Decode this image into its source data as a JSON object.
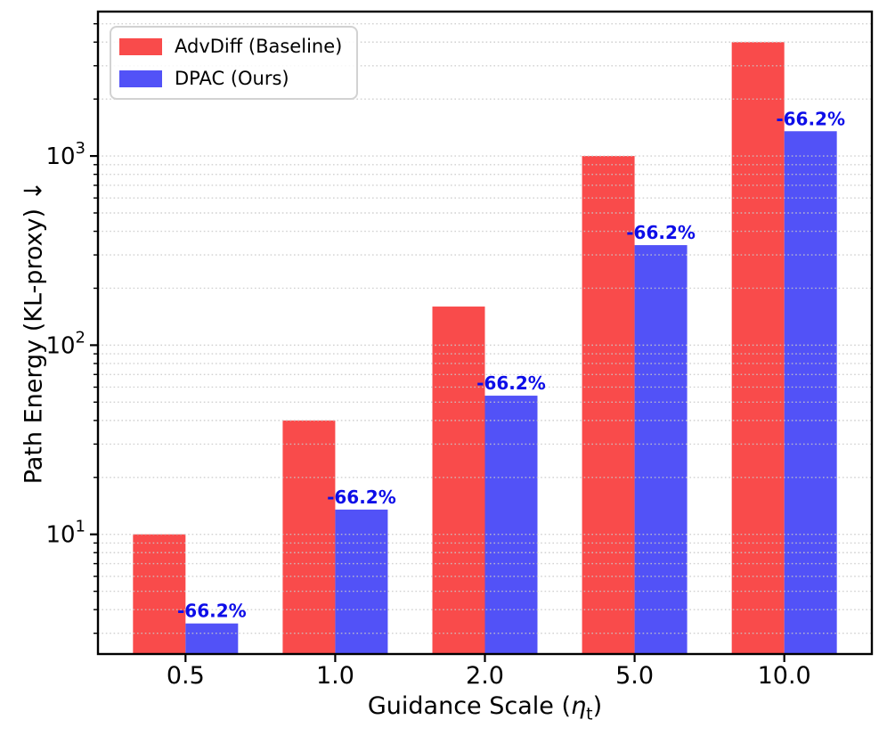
{
  "figure": {
    "background": "#ffffff"
  },
  "chart_data": {
    "type": "bar",
    "categories": [
      "0.5",
      "1.0",
      "2.0",
      "5.0",
      "10.0"
    ],
    "series": [
      {
        "name": "AdvDiff (Baseline)",
        "color": "#f94b4b",
        "values": [
          10,
          40,
          160,
          1000,
          4000
        ]
      },
      {
        "name": "DPAC (Ours)",
        "color": "#5252f7",
        "values": [
          3.38,
          13.52,
          54.08,
          338,
          1352
        ]
      }
    ],
    "annotations": {
      "series_index": 1,
      "labels": [
        "-66.2%",
        "-66.2%",
        "-66.2%",
        "-66.2%",
        "-66.2%"
      ],
      "color": "#0d0de8"
    },
    "title": "",
    "xlabel": {
      "text": "Guidance Scale (ηt)",
      "prefix": "Guidance Scale (",
      "symbol": "η",
      "subscript": "t",
      "suffix": ")"
    },
    "ylabel": "Path Energy (KL-proxy)  ↓",
    "yscale": "log",
    "ylim": [
      2.33,
      5800
    ],
    "yticks": [
      {
        "base": "10",
        "exponent": "1",
        "value": 10
      },
      {
        "base": "10",
        "exponent": "2",
        "value": 100
      },
      {
        "base": "10",
        "exponent": "3",
        "value": 1000
      }
    ],
    "grid": {
      "which": "both",
      "style": "dotted",
      "color": "#c9c9c9",
      "orientation": "horizontal"
    },
    "legend": {
      "position": "upper-left"
    }
  }
}
